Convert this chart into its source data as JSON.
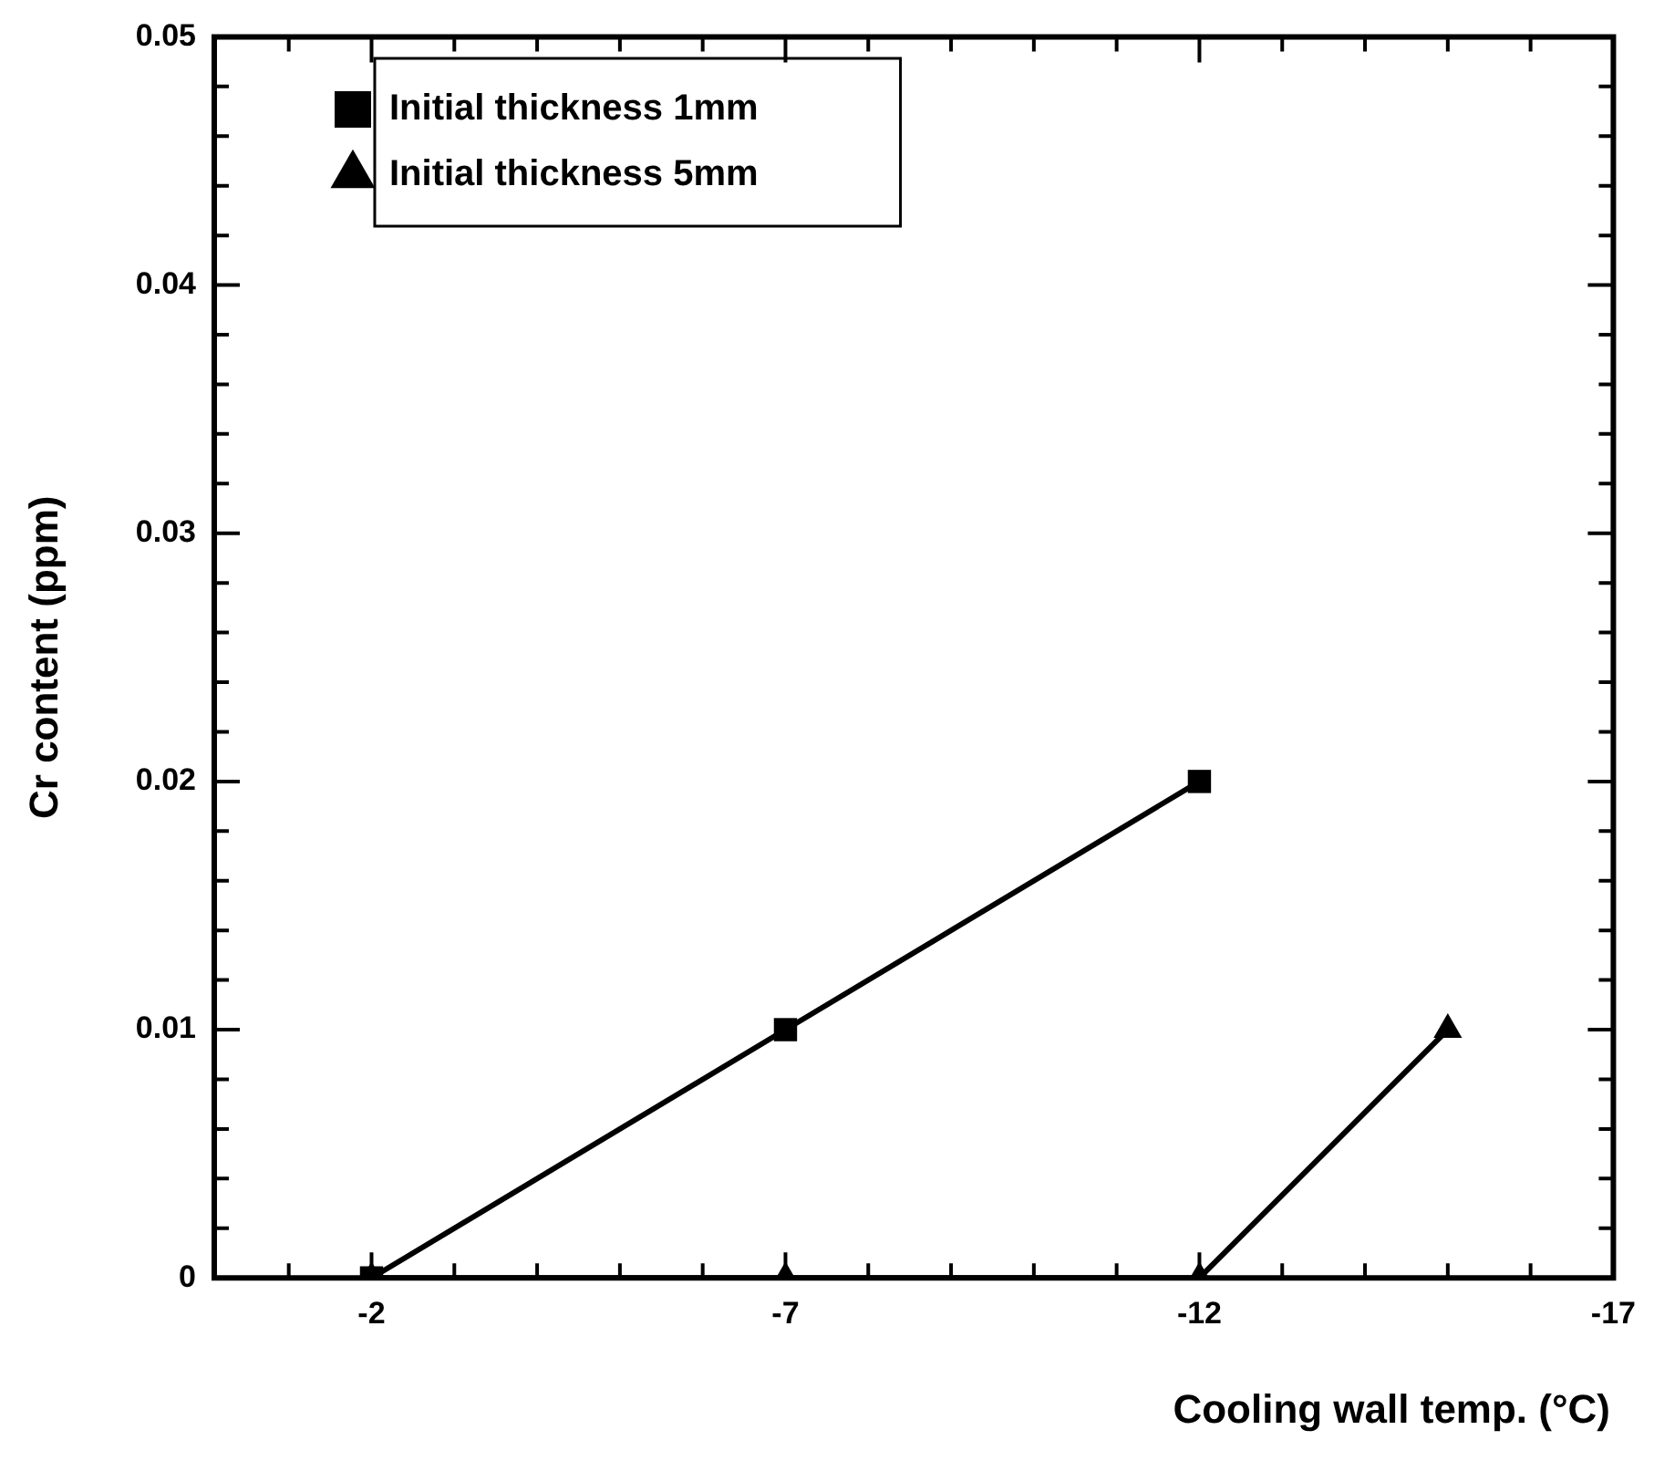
{
  "chart_data": {
    "type": "line",
    "xlabel": "Cooling wall temp. (°C)",
    "ylabel": "Cr content (ppm)",
    "xlim": [
      -0.1,
      -17
    ],
    "xticks": [
      {
        "value": -1,
        "label": null
      },
      -2,
      {
        "value": -3,
        "label": null
      },
      {
        "value": -4,
        "label": null
      },
      {
        "value": -5,
        "label": null
      },
      {
        "value": -6,
        "label": null
      },
      -7,
      {
        "value": -8,
        "label": null
      },
      {
        "value": -9,
        "label": null
      },
      {
        "value": -10,
        "label": null
      },
      {
        "value": -11,
        "label": null
      },
      -12,
      {
        "value": -13,
        "label": null
      },
      {
        "value": -14,
        "label": null
      },
      {
        "value": -15,
        "label": null
      },
      {
        "value": -16,
        "label": null
      },
      -17
    ],
    "ylim": [
      0,
      0.05
    ],
    "yticks": [
      0,
      {
        "value": 0.002,
        "label": null
      },
      {
        "value": 0.004,
        "label": null
      },
      {
        "value": 0.006,
        "label": null
      },
      {
        "value": 0.008,
        "label": null
      },
      0.01,
      {
        "value": 0.012,
        "label": null
      },
      {
        "value": 0.014,
        "label": null
      },
      {
        "value": 0.016,
        "label": null
      },
      {
        "value": 0.018,
        "label": null
      },
      0.02,
      {
        "value": 0.022,
        "label": null
      },
      {
        "value": 0.024,
        "label": null
      },
      {
        "value": 0.026,
        "label": null
      },
      {
        "value": 0.028,
        "label": null
      },
      0.03,
      {
        "value": 0.032,
        "label": null
      },
      {
        "value": 0.034,
        "label": null
      },
      {
        "value": 0.036,
        "label": null
      },
      {
        "value": 0.038,
        "label": null
      },
      0.04,
      {
        "value": 0.042,
        "label": null
      },
      {
        "value": 0.044,
        "label": null
      },
      {
        "value": 0.046,
        "label": null
      },
      {
        "value": 0.048,
        "label": null
      },
      0.05
    ],
    "grid": false,
    "legend": "top left",
    "line_style": "solid",
    "series": [
      {
        "name": "Initial thickness 1mm",
        "color": "#000000",
        "marker": "square",
        "x": [
          -2,
          -7,
          -12
        ],
        "values": [
          0,
          0.01,
          0.02
        ]
      },
      {
        "name": "Initial thickness 5mm",
        "color": "#000000",
        "marker": "triangle",
        "x": [
          -2,
          -7,
          -12,
          -15
        ],
        "values": [
          0,
          0,
          0,
          0.01
        ]
      }
    ]
  }
}
